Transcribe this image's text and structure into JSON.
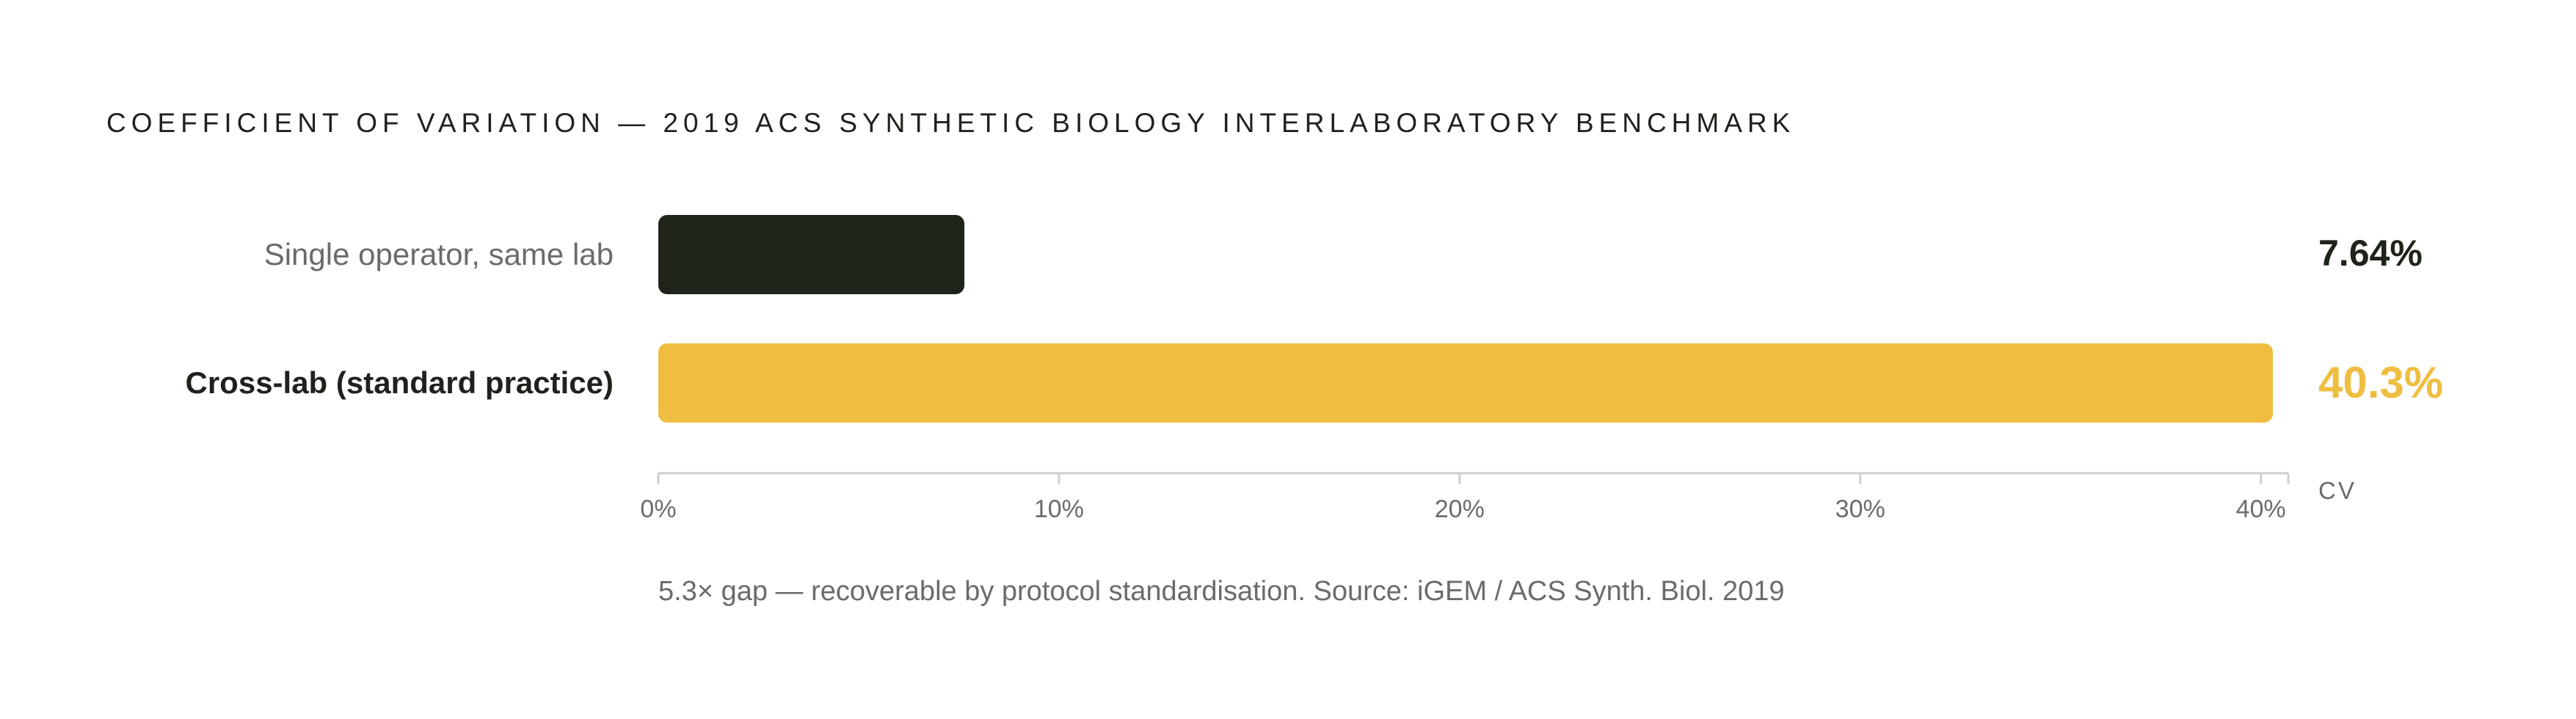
{
  "chart_data": {
    "type": "bar",
    "orientation": "horizontal",
    "title": "COEFFICIENT OF VARIATION — 2019 ACS SYNTHETIC BIOLOGY INTERLABORATORY BENCHMARK",
    "categories": [
      "Single operator, same lab",
      "Cross-lab (standard practice)"
    ],
    "values": [
      7.64,
      40.3
    ],
    "value_labels": [
      "7.64%",
      "40.3%"
    ],
    "colors": [
      "#1e2419",
      "#efbe41"
    ],
    "xlim": [
      0,
      40.3
    ],
    "xticks": [
      0,
      10,
      20,
      30,
      40
    ],
    "xtick_labels": [
      "0%",
      "10%",
      "20%",
      "30%",
      "40%"
    ],
    "xlabel": "CV",
    "ylabel": "",
    "grid": false,
    "legend": "none",
    "footnote": "5.3× gap — recoverable by protocol standardisation. Source: iGEM / ACS Synth. Biol. 2019"
  }
}
